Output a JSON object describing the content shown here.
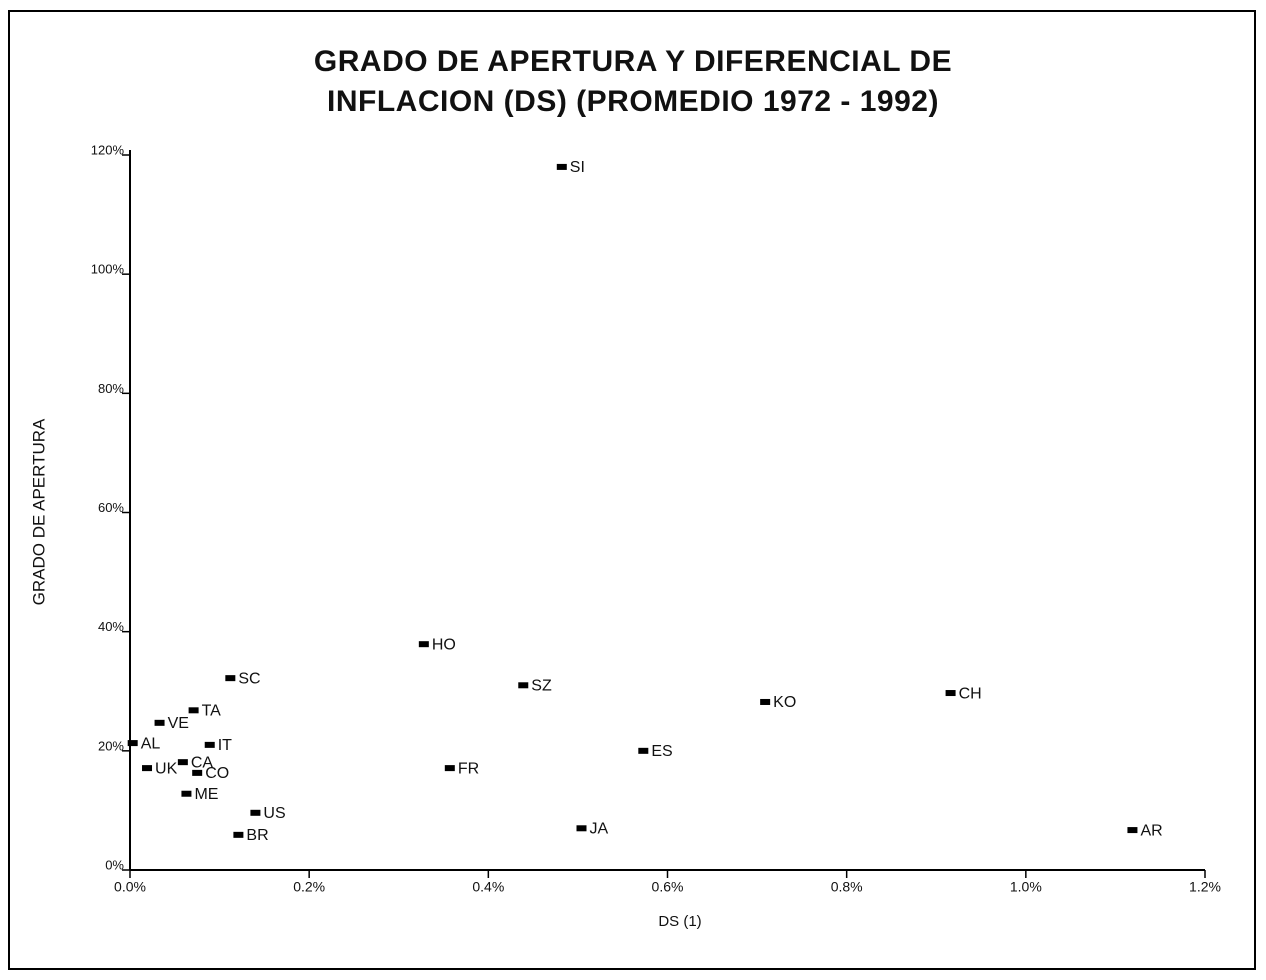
{
  "chart_data": {
    "type": "scatter",
    "title": "GRADO DE APERTURA Y DIFERENCIAL DE INFLACION (DS) (PROMEDIO 1972 - 1992)",
    "x_label": "DS (1)",
    "y_label": "GRADO DE APERTURA",
    "labels": [
      "SI",
      "HO",
      "SC",
      "SZ",
      "KO",
      "CH",
      "TA",
      "VE",
      "AL",
      "IT",
      "ES",
      "CA",
      "UK",
      "CO",
      "FR",
      "ME",
      "US",
      "BR",
      "JA",
      "AR"
    ],
    "x": [
      0.482,
      0.328,
      0.112,
      0.439,
      0.709,
      0.916,
      0.071,
      0.033,
      0.003,
      0.089,
      0.573,
      0.059,
      0.019,
      0.075,
      0.357,
      0.063,
      0.14,
      0.121,
      0.504,
      1.119
    ],
    "values": [
      118,
      37.9,
      32.2,
      31.0,
      28.2,
      29.7,
      26.8,
      24.7,
      21.3,
      21.0,
      20.0,
      18.1,
      17.1,
      16.3,
      17.1,
      12.8,
      9.6,
      5.9,
      7.0,
      6.7
    ],
    "color": "#000000",
    "xlim": [
      0,
      1.2
    ],
    "xticks": [
      {
        "value": 0,
        "label": "0.0%"
      },
      {
        "value": 0.2,
        "label": "0.2%"
      },
      {
        "value": 0.4,
        "label": "0.4%"
      },
      {
        "value": 0.6,
        "label": "0.6%"
      },
      {
        "value": 0.8,
        "label": "0.8%"
      },
      {
        "value": 1.0,
        "label": "1.0%"
      },
      {
        "value": 1.2,
        "label": "1.2%"
      }
    ],
    "ylim": [
      0,
      120
    ],
    "yticks": [
      {
        "value": 0,
        "label": "0%"
      },
      {
        "value": 20,
        "label": "20%"
      },
      {
        "value": 40,
        "label": "40%"
      },
      {
        "value": 60,
        "label": "60%"
      },
      {
        "value": 80,
        "label": "80%"
      },
      {
        "value": 100,
        "label": "100%"
      },
      {
        "value": 120,
        "label": "120%"
      }
    ],
    "grid": false
  }
}
